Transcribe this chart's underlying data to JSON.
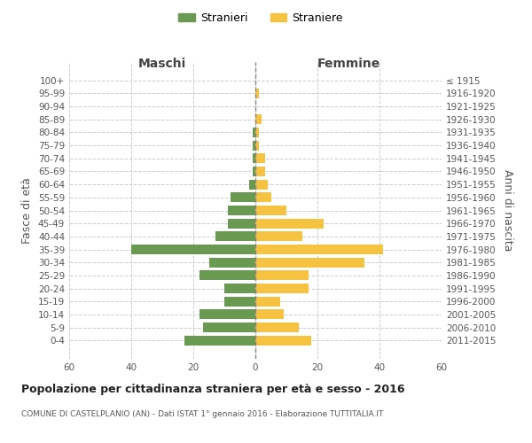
{
  "age_groups": [
    "100+",
    "95-99",
    "90-94",
    "85-89",
    "80-84",
    "75-79",
    "70-74",
    "65-69",
    "60-64",
    "55-59",
    "50-54",
    "45-49",
    "40-44",
    "35-39",
    "30-34",
    "25-29",
    "20-24",
    "15-19",
    "10-14",
    "5-9",
    "0-4"
  ],
  "birth_years": [
    "≤ 1915",
    "1916-1920",
    "1921-1925",
    "1926-1930",
    "1931-1935",
    "1936-1940",
    "1941-1945",
    "1946-1950",
    "1951-1955",
    "1956-1960",
    "1961-1965",
    "1966-1970",
    "1971-1975",
    "1976-1980",
    "1981-1985",
    "1986-1990",
    "1991-1995",
    "1996-2000",
    "2001-2005",
    "2006-2010",
    "2011-2015"
  ],
  "maschi": [
    0,
    0,
    0,
    0,
    1,
    1,
    1,
    1,
    2,
    8,
    9,
    9,
    13,
    40,
    15,
    18,
    10,
    10,
    18,
    17,
    23
  ],
  "femmine": [
    0,
    1,
    0,
    2,
    1,
    1,
    3,
    3,
    4,
    5,
    10,
    22,
    15,
    41,
    35,
    17,
    17,
    8,
    9,
    14,
    18
  ],
  "maschi_color": "#6a9a52",
  "femmine_color": "#f5c242",
  "background_color": "#ffffff",
  "grid_color": "#cccccc",
  "title_main": "Popolazione per cittadinanza straniera per età e sesso - 2016",
  "title_sub": "COMUNE DI CASTELPLANIO (AN) - Dati ISTAT 1° gennaio 2016 - Elaborazione TUTTITALIA.IT",
  "ylabel_left": "Fasce di età",
  "ylabel_right": "Anni di nascita",
  "xlabel_maschi": "Maschi",
  "xlabel_femmine": "Femmine",
  "legend_maschi": "Stranieri",
  "legend_femmine": "Straniere",
  "xlim": 60
}
